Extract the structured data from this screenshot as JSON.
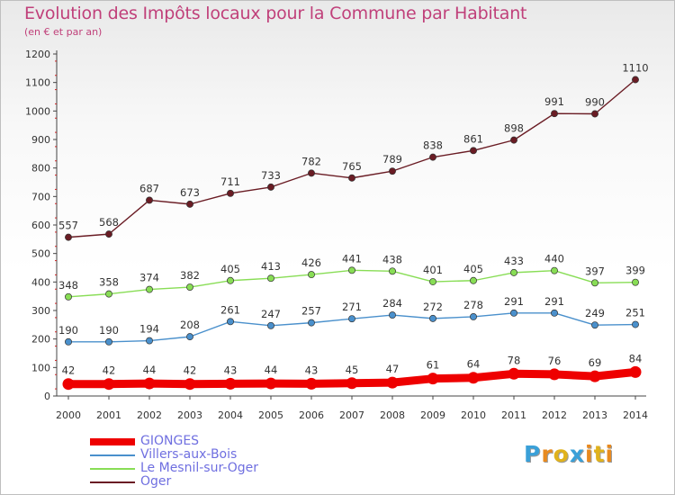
{
  "title": "Evolution des Impôts locaux pour la Commune par Habitant",
  "subtitle": "(en € et par an)",
  "logo": {
    "letters": [
      "P",
      "r",
      "o",
      "x",
      "i",
      "t",
      "i"
    ],
    "colors": [
      "#3aa0d8",
      "#e88a1f",
      "#e0b21c",
      "#3aa0d8",
      "#e88a1f",
      "#e0b21c",
      "#e88a1f"
    ]
  },
  "chart_data": {
    "type": "line",
    "x": [
      2000,
      2001,
      2002,
      2003,
      2004,
      2005,
      2006,
      2007,
      2008,
      2009,
      2010,
      2011,
      2012,
      2013,
      2014
    ],
    "ylim": [
      0,
      1200
    ],
    "yticks": [
      0,
      100,
      200,
      300,
      400,
      500,
      600,
      700,
      800,
      900,
      1000,
      1100,
      1200
    ],
    "grid": false,
    "legend_position": "bottom-left",
    "series": [
      {
        "name": "GIONGES",
        "color": "#ee0000",
        "values": [
          42,
          42,
          44,
          42,
          43,
          44,
          43,
          45,
          47,
          61,
          64,
          78,
          76,
          69,
          84
        ]
      },
      {
        "name": "Villers-aux-Bois",
        "color": "#4a90cc",
        "values": [
          190,
          190,
          194,
          208,
          261,
          247,
          257,
          271,
          284,
          272,
          278,
          291,
          291,
          249,
          251
        ]
      },
      {
        "name": "Le Mesnil-sur-Oger",
        "color": "#88dd55",
        "values": [
          348,
          358,
          374,
          382,
          405,
          413,
          426,
          441,
          438,
          401,
          405,
          433,
          440,
          397,
          399
        ]
      },
      {
        "name": "Oger",
        "color": "#6a1c24",
        "values": [
          557,
          568,
          687,
          673,
          711,
          733,
          782,
          765,
          789,
          838,
          861,
          898,
          991,
          990,
          1110
        ]
      }
    ]
  }
}
